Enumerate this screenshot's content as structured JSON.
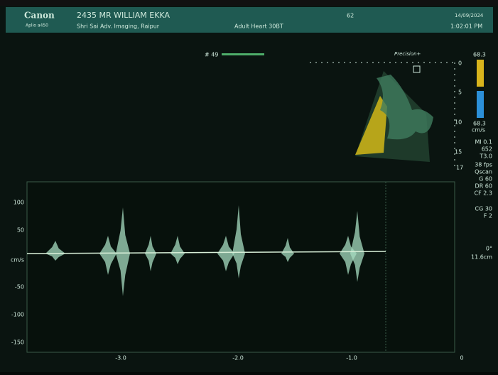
{
  "header": {
    "brand": "Canon",
    "model": "Aplio a450",
    "patient": "2435 MR WILLIAM EKKA",
    "institution": "Shri Sai Adv. Imaging, Raipur",
    "preset": "Adult Heart 30BT",
    "code": "62",
    "date": "14/09/2024",
    "time": "1:02:01 PM"
  },
  "image": {
    "marker": "# 49",
    "precision": "Precision+",
    "depth_labels": [
      "0",
      "5",
      "10",
      "15",
      "17"
    ]
  },
  "color_bar": {
    "top": "68.3",
    "bottom": "68.3",
    "unit": "cm/s"
  },
  "params": [
    "MI 0.1",
    "652",
    "T3.0",
    "38 fps",
    "Qscan",
    "G 60",
    "DR 60",
    "CF 2.3",
    "CG 30",
    "F 2",
    "0°",
    "11.6cm"
  ],
  "doppler": {
    "y_labels": [
      "100",
      "50",
      "cm/s",
      "-50",
      "-100",
      "-150"
    ],
    "x_labels": [
      "-3.0",
      "-2.0",
      "-1.0",
      "0"
    ]
  }
}
